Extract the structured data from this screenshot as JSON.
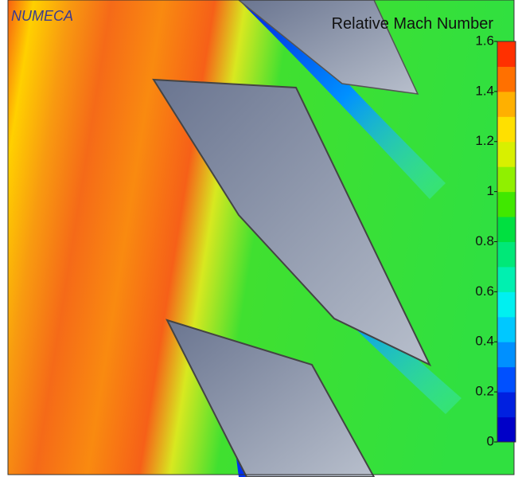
{
  "brand": "NUMECA",
  "colorbar": {
    "title": "Relative Mach Number",
    "range": [
      0,
      1.6
    ],
    "ticks": [
      0,
      0.2,
      0.4,
      0.6,
      0.8,
      1,
      1.2,
      1.4,
      1.6
    ],
    "colors": [
      "#0000c8",
      "#0020e0",
      "#0050ff",
      "#0090ff",
      "#00c8ff",
      "#00f0f0",
      "#00f0b0",
      "#00e878",
      "#00e040",
      "#40e800",
      "#90f000",
      "#d8f000",
      "#ffe000",
      "#ffb000",
      "#ff7000",
      "#ff3000"
    ]
  }
}
